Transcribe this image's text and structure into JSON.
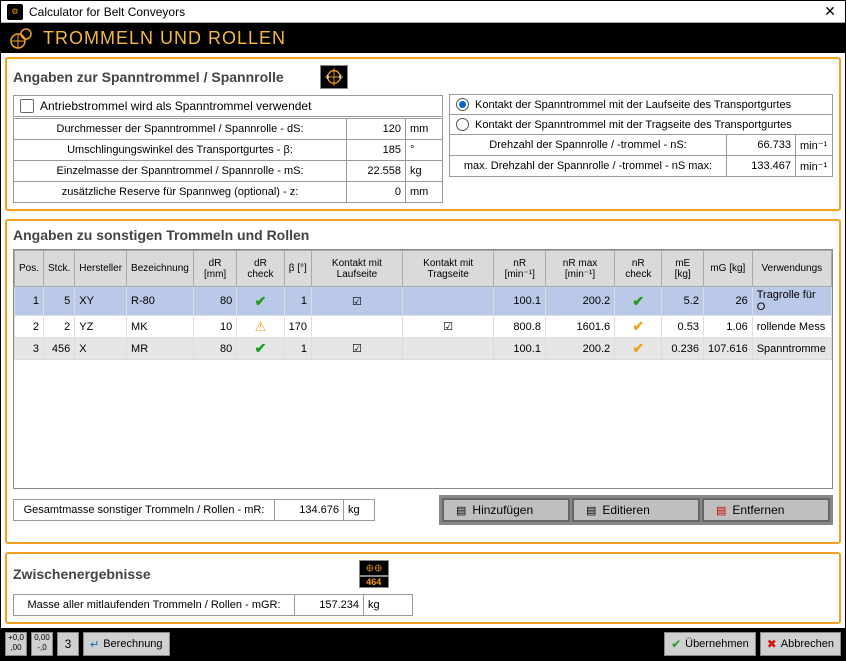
{
  "window": {
    "title": "Calculator for Belt Conveyors",
    "header": "TROMMELN UND ROLLEN"
  },
  "spannrolle": {
    "section_title": "Angaben zur Spanntrommel / Spannrolle",
    "checkbox_label": "Antriebstrommel wird als Spanntrommel verwendet",
    "fields": {
      "dS": {
        "label": "Durchmesser der Spanntrommel / Spannrolle - dS:",
        "value": "120",
        "unit": "mm"
      },
      "beta": {
        "label": "Umschlingungswinkel des Transportgurtes - β:",
        "value": "185",
        "unit": "°"
      },
      "mS": {
        "label": "Einzelmasse der Spanntrommel / Spannrolle - mS:",
        "value": "22.558",
        "unit": "kg"
      },
      "z": {
        "label": "zusätzliche Reserve für Spannweg (optional) - z:",
        "value": "0",
        "unit": "mm"
      }
    },
    "radio1": "Kontakt der Spanntrommel mit der Laufseite des Transportgurtes",
    "radio2": "Kontakt der Spanntrommel mit der Tragseite des Transportgurtes",
    "nS": {
      "label": "Drehzahl der Spannrolle / -trommel - nS:",
      "value": "66.733",
      "unit": "min⁻¹"
    },
    "nSmax": {
      "label": "max. Drehzahl der Spannrolle / -trommel - nS max:",
      "value": "133.467",
      "unit": "min⁻¹"
    }
  },
  "sonstige": {
    "section_title": "Angaben zu sonstigen Trommeln und Rollen",
    "columns": [
      "Pos.",
      "Stck.",
      "Hersteller",
      "Bezeichnung",
      "dR [mm]",
      "dR check",
      "β [°]",
      "Kontakt mit Laufseite",
      "Kontakt mit Tragseite",
      "nR [min⁻¹]",
      "nR max [min⁻¹]",
      "nR check",
      "mE [kg]",
      "mG [kg]",
      "Verwendungs"
    ],
    "rows": [
      {
        "pos": "1",
        "stck": "5",
        "herst": "XY",
        "bez": "R-80",
        "dR": "80",
        "dRcheck": "green",
        "beta": "1",
        "lauf": true,
        "trag": false,
        "nR": "100.1",
        "nRmax": "200.2",
        "nRcheck": "green",
        "mE": "5.2",
        "mG": "26",
        "verw": "Tragrolle für O"
      },
      {
        "pos": "2",
        "stck": "2",
        "herst": "YZ",
        "bez": "MK",
        "dR": "10",
        "dRcheck": "warn",
        "beta": "170",
        "lauf": false,
        "trag": true,
        "nR": "800.8",
        "nRmax": "1601.6",
        "nRcheck": "orange",
        "mE": "0.53",
        "mG": "1.06",
        "verw": "rollende Mess"
      },
      {
        "pos": "3",
        "stck": "456",
        "herst": "X",
        "bez": "MR",
        "dR": "80",
        "dRcheck": "green",
        "beta": "1",
        "lauf": true,
        "trag": false,
        "nR": "100.1",
        "nRmax": "200.2",
        "nRcheck": "orange",
        "mE": "0.236",
        "mG": "107.616",
        "verw": "Spanntromme"
      }
    ],
    "mR": {
      "label": "Gesamtmasse sonstiger Trommeln / Rollen - mR:",
      "value": "134.676",
      "unit": "kg"
    },
    "btn_add": "Hinzufügen",
    "btn_edit": "Editieren",
    "btn_remove": "Entfernen"
  },
  "zwischen": {
    "section_title": "Zwischenergebnisse",
    "badge_num": "464",
    "mGR": {
      "label": "Masse aller mitlaufenden Trommeln / Rollen - mGR:",
      "value": "157.234",
      "unit": "kg"
    }
  },
  "footer": {
    "step_val": "3",
    "berechnung": "Berechnung",
    "uebernehmen": "Übernehmen",
    "abbrechen": "Abbrechen"
  },
  "colors": {
    "accent": "#f4a020",
    "header_bg": "#000000",
    "header_fg": "#f4b942"
  }
}
